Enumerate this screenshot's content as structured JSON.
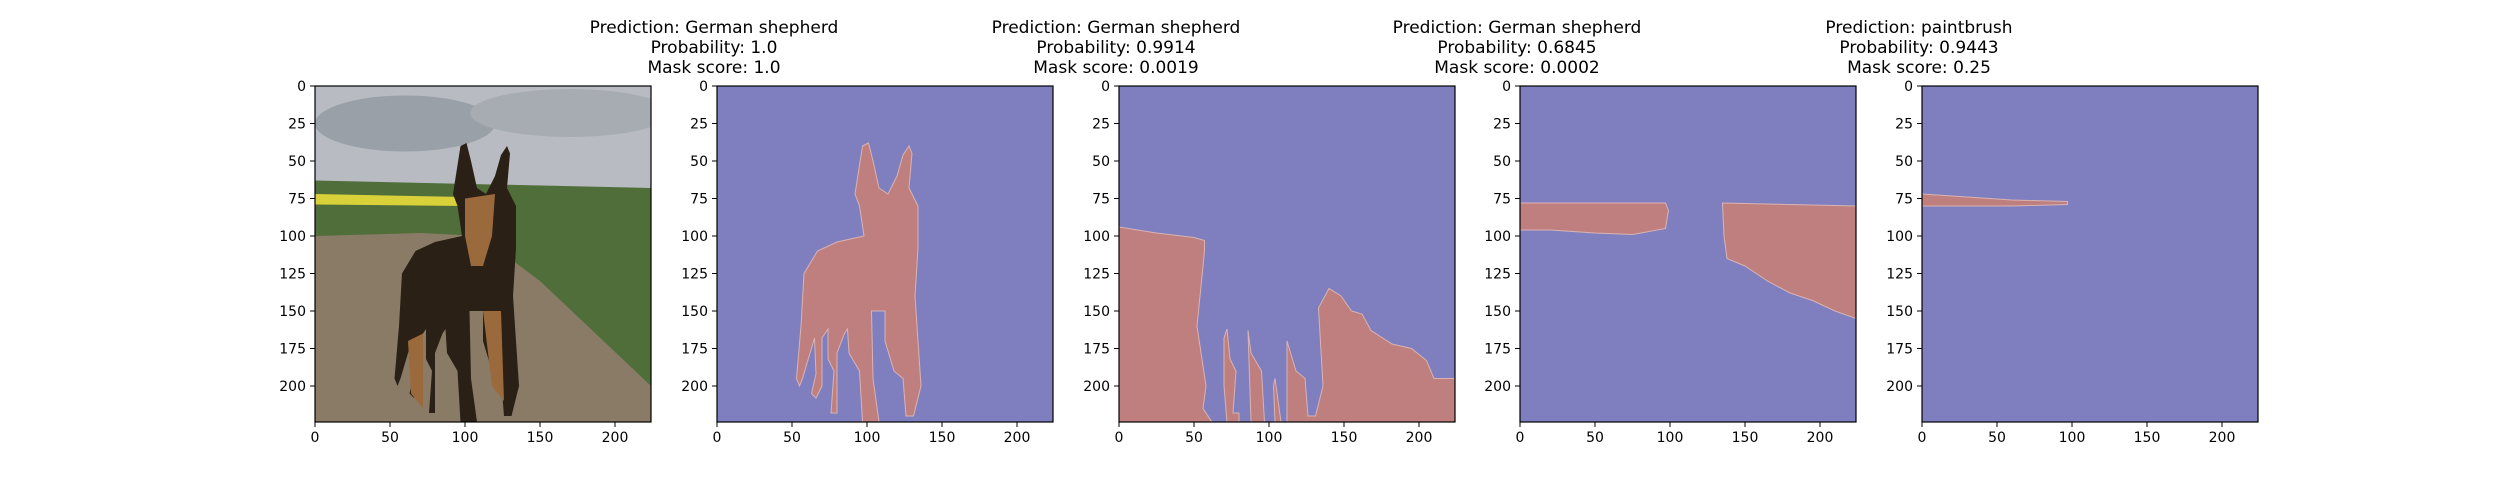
{
  "figure": {
    "colors": {
      "background": "#7f7fbf",
      "mask": "#bf7f7f",
      "axis": "#000000",
      "sky": "#b8bcc2",
      "field": "#4f6e3a",
      "path": "#8a7b66",
      "rapeseed": "#d9d13a",
      "dog_dark": "#2a2016",
      "dog_tan": "#9a6a3c"
    }
  },
  "chart_data": [
    {
      "type": "image",
      "content": "input photo: German shepherd standing on a dirt path beside a green field",
      "title": [],
      "xticks": [
        0,
        50,
        100,
        150,
        200
      ],
      "yticks": [
        0,
        25,
        50,
        75,
        100,
        125,
        150,
        175,
        200
      ],
      "xlim": [
        0,
        224
      ],
      "ylim": [
        224,
        0
      ]
    },
    {
      "type": "heatmap",
      "title": [
        "Prediction: German shepherd",
        "Probability: 1.0",
        "Mask score: 1.0"
      ],
      "prediction": "German shepherd",
      "probability": 1.0,
      "mask_score": 1.0,
      "mask_region": "whole dog silhouette",
      "mask_polygons": [
        [
          [
            97,
            40
          ],
          [
            101,
            38
          ],
          [
            104,
            50
          ],
          [
            108,
            68
          ],
          [
            114,
            72
          ],
          [
            120,
            60
          ],
          [
            124,
            46
          ],
          [
            128,
            40
          ],
          [
            130,
            45
          ],
          [
            128,
            68
          ],
          [
            134,
            80
          ],
          [
            134,
            108
          ],
          [
            132,
            140
          ],
          [
            136,
            200
          ],
          [
            131,
            220
          ],
          [
            126,
            220
          ],
          [
            124,
            195
          ],
          [
            118,
            190
          ],
          [
            112,
            170
          ],
          [
            112,
            150
          ],
          [
            103,
            150
          ],
          [
            104,
            195
          ],
          [
            108,
            224
          ],
          [
            97,
            224
          ],
          [
            95,
            190
          ],
          [
            88,
            178
          ],
          [
            87,
            162
          ],
          [
            85,
            165
          ],
          [
            80,
            178
          ],
          [
            80,
            218
          ],
          [
            76,
            218
          ],
          [
            78,
            190
          ],
          [
            74,
            182
          ],
          [
            74,
            162
          ],
          [
            70,
            168
          ],
          [
            70,
            200
          ],
          [
            66,
            208
          ],
          [
            63,
            205
          ],
          [
            66,
            192
          ],
          [
            65,
            168
          ],
          [
            57,
            195
          ],
          [
            55,
            200
          ],
          [
            53,
            195
          ],
          [
            56,
            160
          ],
          [
            58,
            125
          ],
          [
            67,
            110
          ],
          [
            80,
            104
          ],
          [
            98,
            100
          ],
          [
            95,
            80
          ],
          [
            92,
            72
          ]
        ]
      ],
      "xticks": [
        0,
        50,
        100,
        150,
        200
      ],
      "yticks": [
        0,
        25,
        50,
        75,
        100,
        125,
        150,
        175,
        200
      ],
      "xlim": [
        0,
        224
      ],
      "ylim": [
        224,
        0
      ]
    },
    {
      "type": "heatmap",
      "title": [
        "Prediction: German shepherd",
        "Probability: 0.9914",
        "Mask score: 0.0019"
      ],
      "prediction": "German shepherd",
      "probability": 0.9914,
      "mask_score": 0.0019,
      "mask_region": "background ground and field areas",
      "mask_polygons": [
        [
          [
            0,
            94
          ],
          [
            25,
            98
          ],
          [
            50,
            101
          ],
          [
            57,
            103
          ],
          [
            57,
            110
          ],
          [
            52,
            160
          ],
          [
            58,
            200
          ],
          [
            56,
            215
          ],
          [
            62,
            224
          ],
          [
            0,
            224
          ]
        ],
        [
          [
            72,
            162
          ],
          [
            74,
            182
          ],
          [
            78,
            190
          ],
          [
            76,
            218
          ],
          [
            80,
            218
          ],
          [
            80,
            224
          ],
          [
            72,
            224
          ],
          [
            70,
            200
          ],
          [
            70,
            168
          ]
        ],
        [
          [
            86,
            163
          ],
          [
            88,
            178
          ],
          [
            95,
            190
          ],
          [
            97,
            224
          ],
          [
            88,
            224
          ]
        ],
        [
          [
            104,
            195
          ],
          [
            108,
            224
          ],
          [
            104,
            224
          ],
          [
            103,
            200
          ]
        ],
        [
          [
            112,
            170
          ],
          [
            118,
            190
          ],
          [
            124,
            195
          ],
          [
            126,
            220
          ],
          [
            131,
            220
          ],
          [
            136,
            200
          ],
          [
            133,
            148
          ],
          [
            140,
            135
          ],
          [
            148,
            140
          ],
          [
            155,
            150
          ],
          [
            162,
            152
          ],
          [
            168,
            163
          ],
          [
            182,
            172
          ],
          [
            195,
            175
          ],
          [
            205,
            183
          ],
          [
            210,
            195
          ],
          [
            224,
            195
          ],
          [
            224,
            224
          ],
          [
            112,
            224
          ]
        ]
      ],
      "xticks": [
        0,
        50,
        100,
        150,
        200
      ],
      "yticks": [
        0,
        25,
        50,
        75,
        100,
        125,
        150,
        175,
        200
      ],
      "xlim": [
        0,
        224
      ],
      "ylim": [
        224,
        0
      ]
    },
    {
      "type": "heatmap",
      "title": [
        "Prediction: German shepherd",
        "Probability: 0.6845",
        "Mask score: 0.0002"
      ],
      "prediction": "German shepherd",
      "probability": 0.6845,
      "mask_score": 0.0002,
      "mask_region": "horizontal field band near y=80",
      "mask_polygons": [
        [
          [
            0,
            78
          ],
          [
            97,
            78
          ],
          [
            99,
            83
          ],
          [
            97,
            95
          ],
          [
            75,
            99
          ],
          [
            50,
            98
          ],
          [
            20,
            96
          ],
          [
            0,
            96
          ]
        ],
        [
          [
            135,
            78
          ],
          [
            224,
            80
          ],
          [
            224,
            155
          ],
          [
            210,
            150
          ],
          [
            195,
            143
          ],
          [
            180,
            138
          ],
          [
            165,
            130
          ],
          [
            150,
            120
          ],
          [
            138,
            115
          ],
          [
            136,
            100
          ]
        ]
      ],
      "xticks": [
        0,
        50,
        100,
        150,
        200
      ],
      "yticks": [
        0,
        25,
        50,
        75,
        100,
        125,
        150,
        175,
        200
      ],
      "xlim": [
        0,
        224
      ],
      "ylim": [
        224,
        0
      ]
    },
    {
      "type": "heatmap",
      "title": [
        "Prediction: paintbrush",
        "Probability: 0.9443",
        "Mask score: 0.25"
      ],
      "prediction": "paintbrush",
      "probability": 0.9443,
      "mask_score": 0.25,
      "mask_region": "thin sliver near y=76, x 0-97",
      "mask_polygons": [
        [
          [
            0,
            72
          ],
          [
            30,
            74
          ],
          [
            60,
            76
          ],
          [
            97,
            77
          ],
          [
            97,
            79
          ],
          [
            60,
            80
          ],
          [
            30,
            80
          ],
          [
            0,
            80
          ]
        ]
      ],
      "xticks": [
        0,
        50,
        100,
        150,
        200
      ],
      "yticks": [
        0,
        25,
        50,
        75,
        100,
        125,
        150,
        175,
        200
      ],
      "xlim": [
        0,
        224
      ],
      "ylim": [
        224,
        0
      ]
    }
  ]
}
